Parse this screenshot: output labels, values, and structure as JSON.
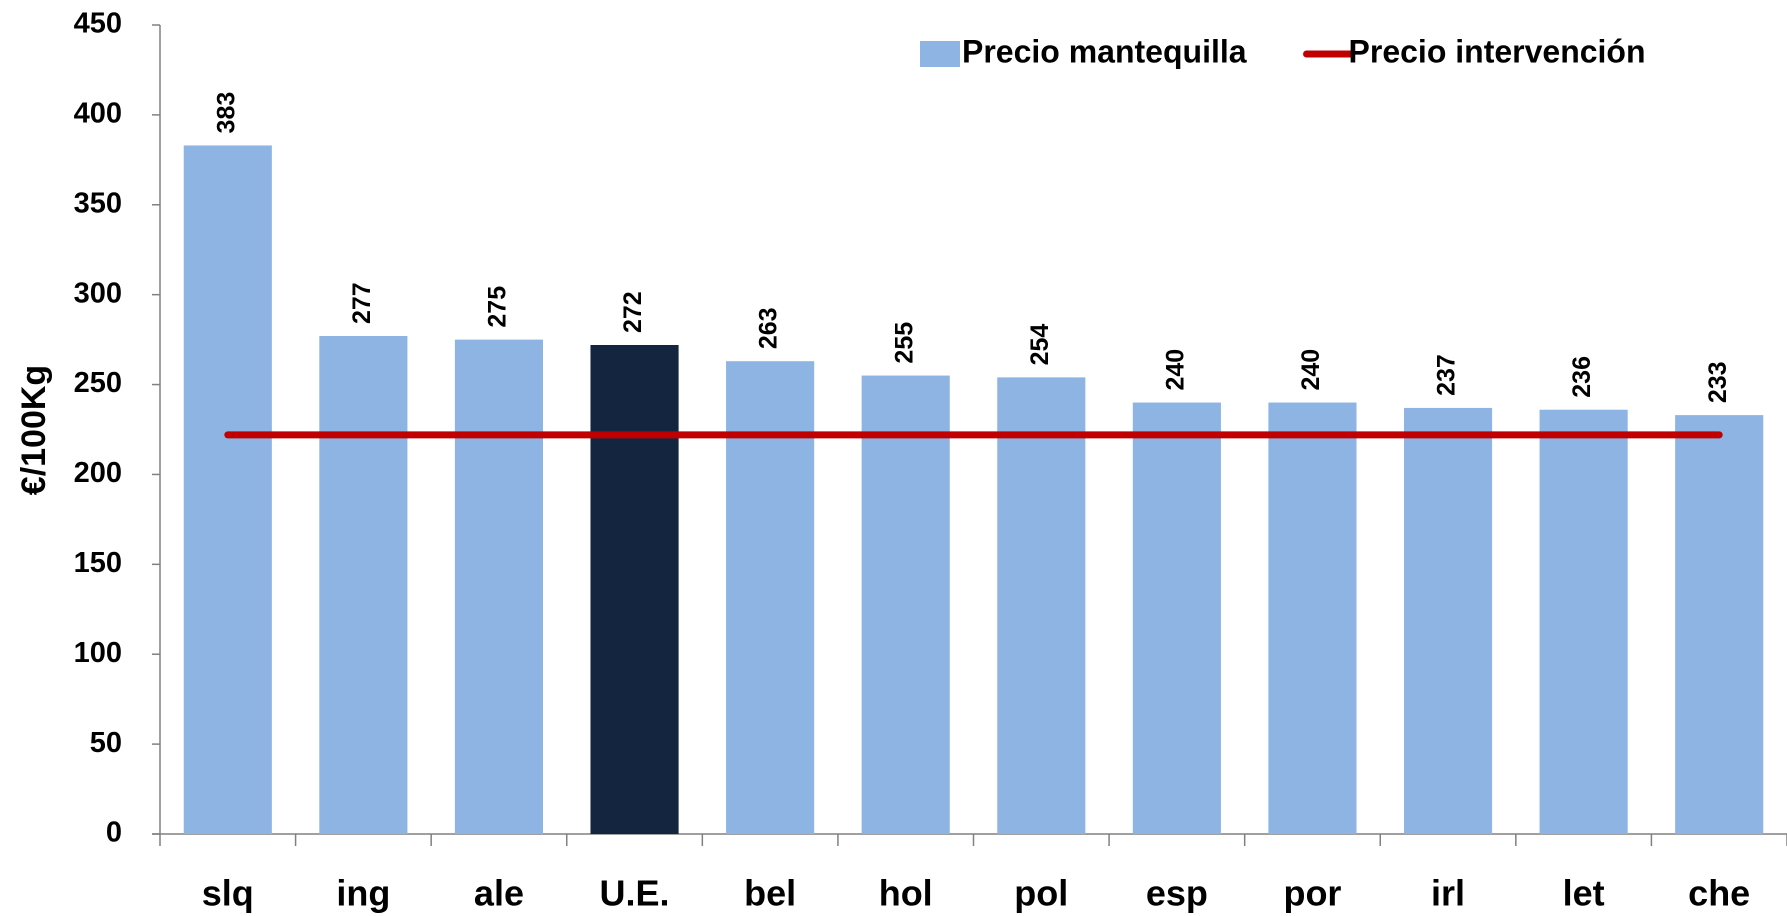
{
  "chart_data": {
    "type": "bar",
    "y_label": "€/100Kg",
    "categories": [
      "slq",
      "ing",
      "ale",
      "U.E.",
      "bel",
      "hol",
      "pol",
      "esp",
      "por",
      "irl",
      "let",
      "che"
    ],
    "series": [
      {
        "name": "Precio mantequilla",
        "type": "bar",
        "color": "#8eb4e3",
        "colors": [
          "#8eb4e3",
          "#8eb4e3",
          "#8eb4e3",
          "#14263f",
          "#8eb4e3",
          "#8eb4e3",
          "#8eb4e3",
          "#8eb4e3",
          "#8eb4e3",
          "#8eb4e3",
          "#8eb4e3",
          "#8eb4e3"
        ],
        "values": [
          383,
          277,
          275,
          272,
          263,
          255,
          254,
          240,
          240,
          237,
          236,
          233
        ]
      },
      {
        "name": "Precio intervención",
        "type": "line",
        "color": "#c00000",
        "values": [
          222,
          222,
          222,
          222,
          222,
          222,
          222,
          222,
          222,
          222,
          222,
          222
        ]
      }
    ],
    "ylim": [
      0,
      450
    ],
    "yticks": [
      0,
      50,
      100,
      150,
      200,
      250,
      300,
      350,
      400,
      450
    ],
    "grid": false,
    "legend": "top-right"
  }
}
